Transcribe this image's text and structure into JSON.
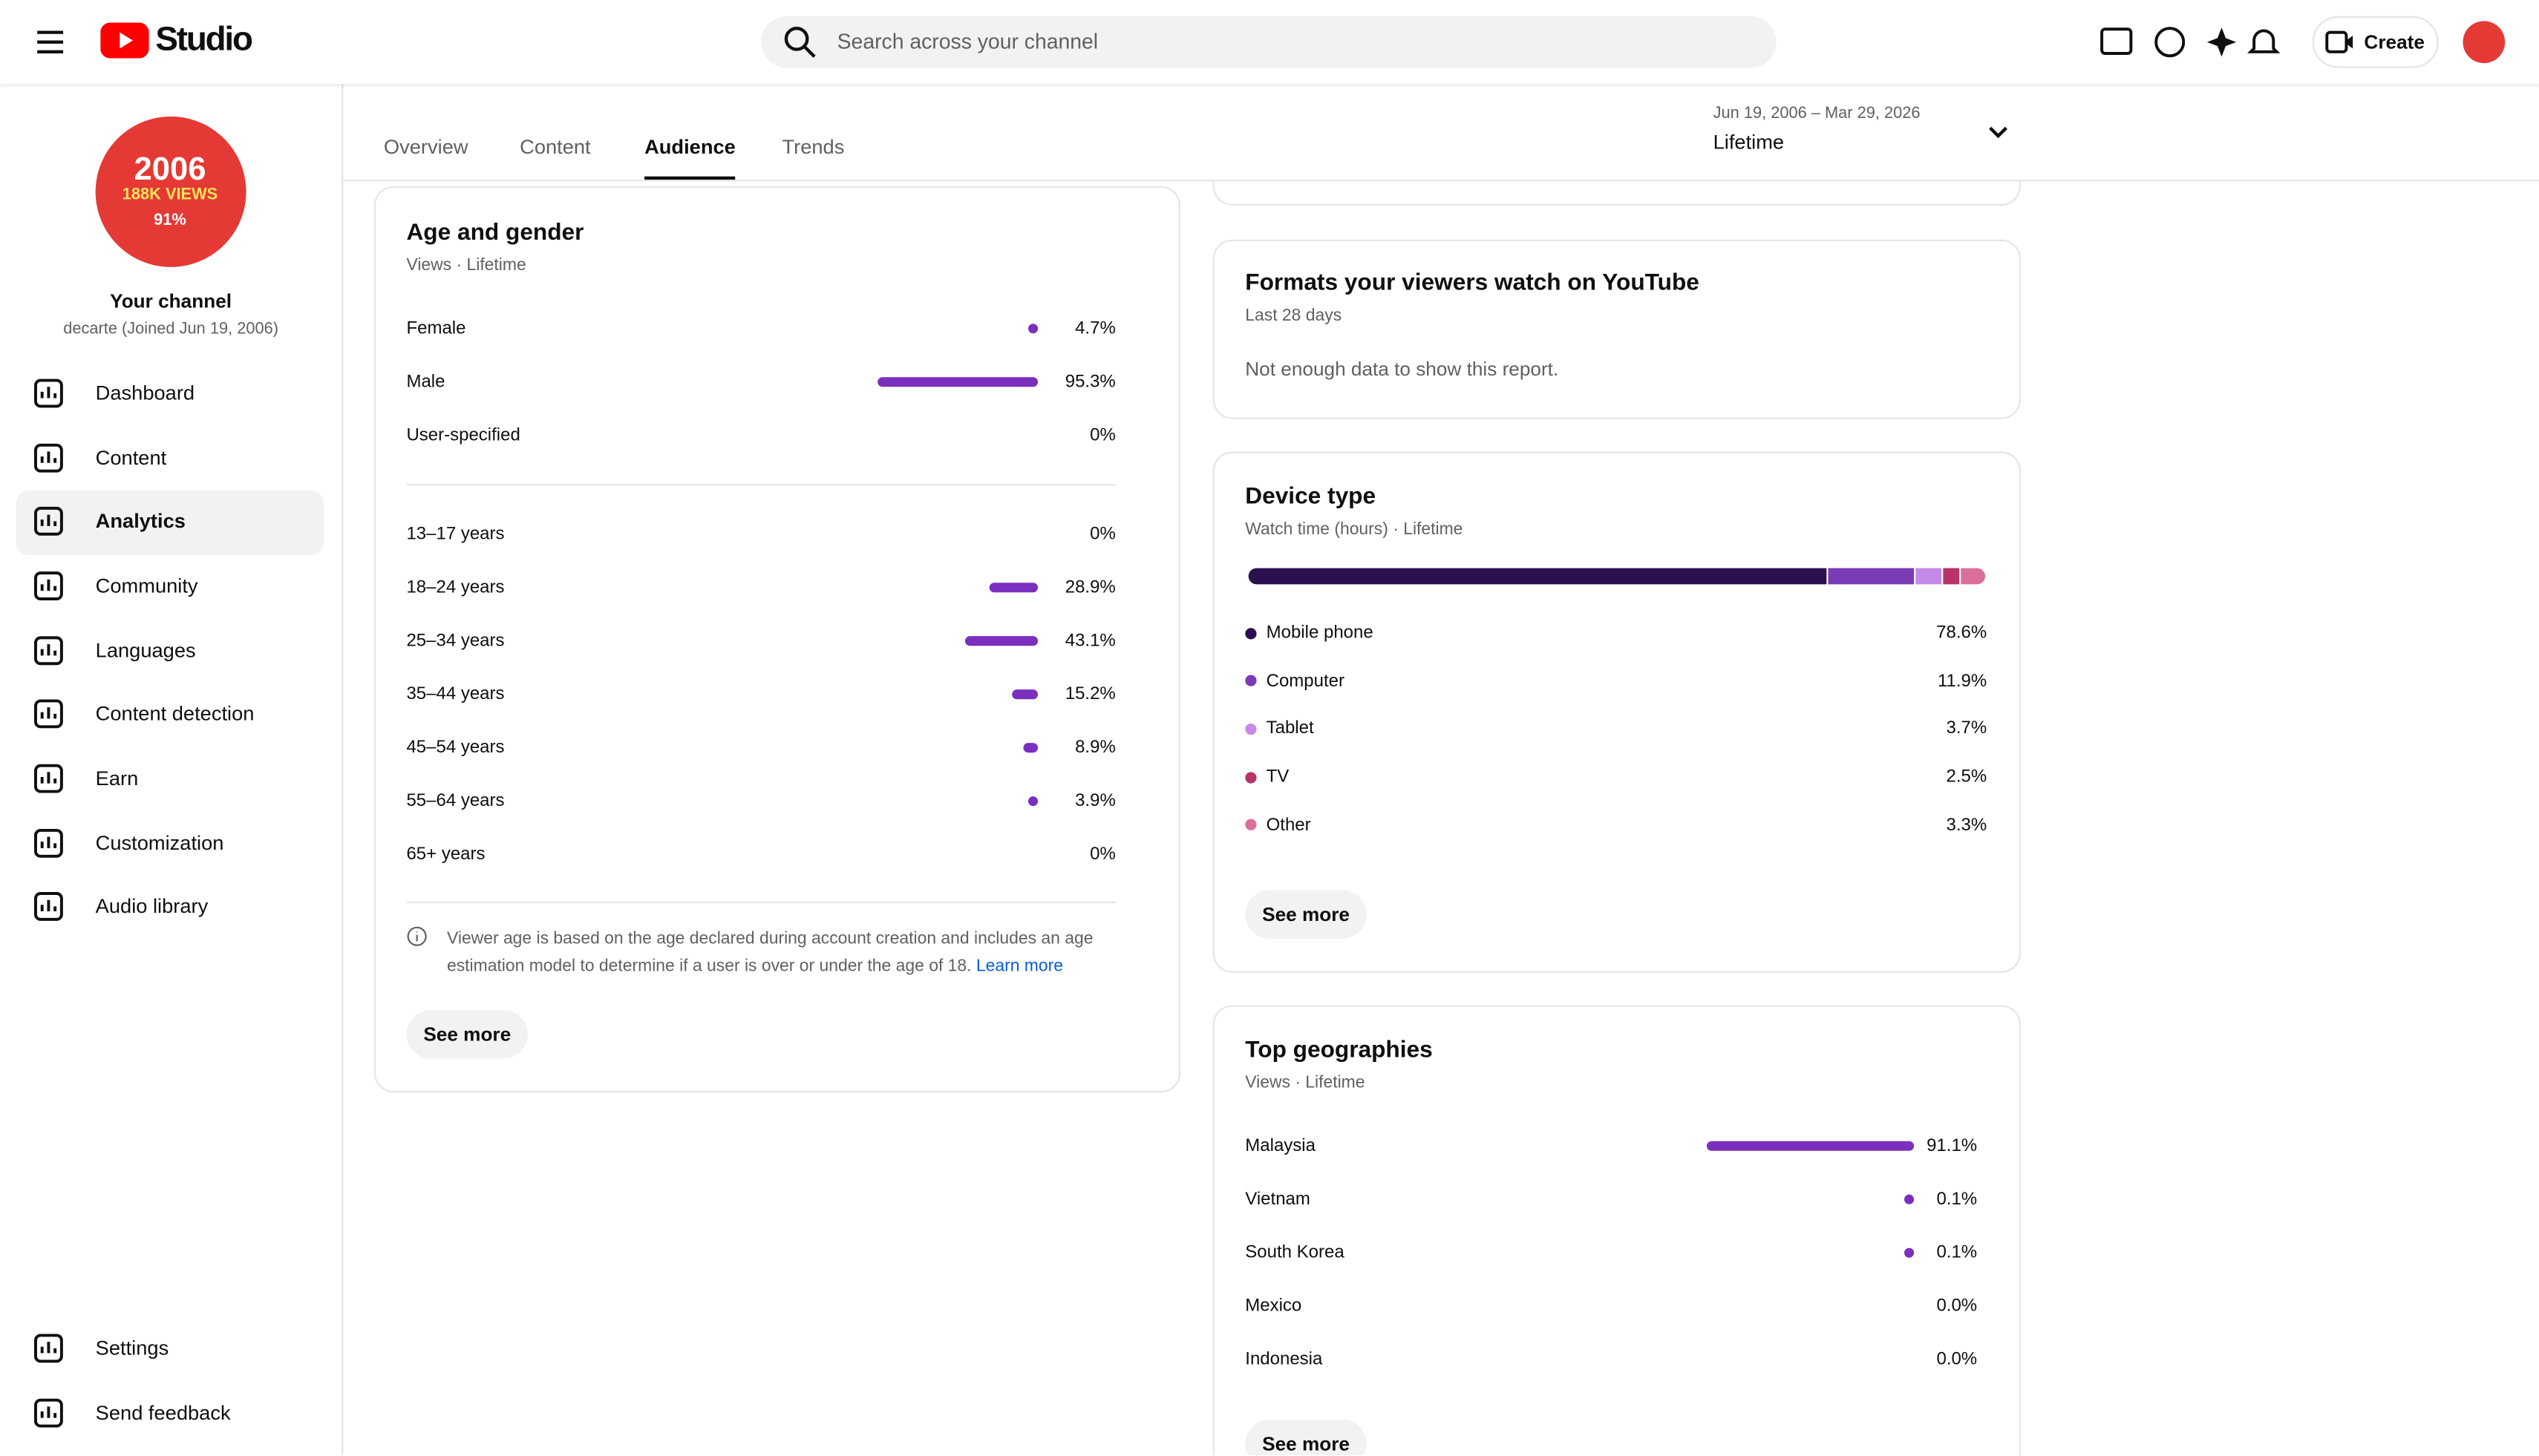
{
  "header": {
    "logo": "Studio",
    "search_placeholder": "Search across your channel",
    "create": "Create"
  },
  "sidebar": {
    "avatar": {
      "line1": "2006",
      "line2": "188K VIEWS",
      "line3": "91%"
    },
    "channel_name": "Your channel",
    "channel_sub": "decarte (Joined Jun 19, 2006)",
    "nav": [
      "Dashboard",
      "Content",
      "Analytics",
      "Community",
      "Languages",
      "Content detection",
      "Earn",
      "Customization",
      "Audio library"
    ],
    "active": "Analytics",
    "bottom": [
      "Settings",
      "Send feedback"
    ]
  },
  "tabs": {
    "items": [
      "Overview",
      "Content",
      "Audience",
      "Trends"
    ],
    "active": "Audience"
  },
  "date_range": {
    "dates": "Jun 19, 2006 – Mar 29, 2026",
    "period": "Lifetime"
  },
  "age_gender": {
    "title": "Age and gender",
    "subtitle": "Views · Lifetime",
    "color": "#7b2fbf",
    "gender": [
      {
        "label": "Female",
        "value": 4.7,
        "value_label": "4.7%"
      },
      {
        "label": "Male",
        "value": 95.3,
        "value_label": "95.3%"
      },
      {
        "label": "User-specified",
        "value": 0,
        "value_label": "0%"
      }
    ],
    "age": [
      {
        "label": "13–17 years",
        "value": 0,
        "value_label": "0%"
      },
      {
        "label": "18–24 years",
        "value": 28.9,
        "value_label": "28.9%"
      },
      {
        "label": "25–34 years",
        "value": 43.1,
        "value_label": "43.1%"
      },
      {
        "label": "35–44 years",
        "value": 15.2,
        "value_label": "15.2%"
      },
      {
        "label": "45–54 years",
        "value": 8.9,
        "value_label": "8.9%"
      },
      {
        "label": "55–64 years",
        "value": 3.9,
        "value_label": "3.9%"
      },
      {
        "label": "65+ years",
        "value": 0,
        "value_label": "0%"
      }
    ],
    "note": "Viewer age is based on the age declared during account creation and includes an age estimation model to determine if a user is over or under the age of 18.",
    "link": "Learn more",
    "button": "See more"
  },
  "formats": {
    "title": "Formats your viewers watch on YouTube",
    "subtitle": "Last 28 days",
    "message": "Not enough data to show this report."
  },
  "device": {
    "title": "Device type",
    "subtitle": "Watch time (hours) · Lifetime",
    "rows": [
      {
        "label": "Mobile phone",
        "value": 78.6,
        "value_label": "78.6%",
        "color": "#2b0f4f"
      },
      {
        "label": "Computer",
        "value": 11.9,
        "value_label": "11.9%",
        "color": "#7b3bb5"
      },
      {
        "label": "Tablet",
        "value": 3.7,
        "value_label": "3.7%",
        "color": "#c58ae8"
      },
      {
        "label": "TV",
        "value": 2.5,
        "value_label": "2.5%",
        "color": "#b8336a"
      },
      {
        "label": "Other",
        "value": 3.3,
        "value_label": "3.3%",
        "color": "#d9709b"
      }
    ],
    "button": "See more"
  },
  "geographies": {
    "title": "Top geographies",
    "subtitle": "Views · Lifetime",
    "color": "#7b2fbf",
    "rows": [
      {
        "label": "Malaysia",
        "value": 91.1,
        "value_label": "91.1%"
      },
      {
        "label": "Vietnam",
        "value": 0.1,
        "value_label": "0.1%"
      },
      {
        "label": "South Korea",
        "value": 0.1,
        "value_label": "0.1%"
      },
      {
        "label": "Mexico",
        "value": 0.0,
        "value_label": "0.0%"
      },
      {
        "label": "Indonesia",
        "value": 0.0,
        "value_label": "0.0%"
      }
    ],
    "button": "See more"
  }
}
